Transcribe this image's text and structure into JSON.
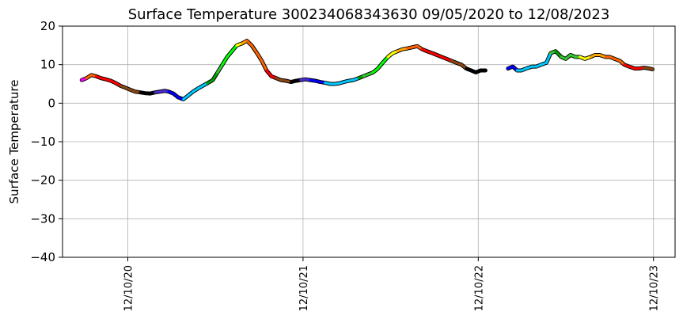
{
  "chart_data": {
    "type": "line",
    "title": "Surface Temperature 300234068343630  09/05/2020 to 12/08/2023",
    "ylabel": "Surface Temperature",
    "xlabel": "",
    "ylim": [
      -40,
      20
    ],
    "xlim": [
      "2020-07-27",
      "2024-01-24"
    ],
    "yticks": [
      -40,
      -30,
      -20,
      -10,
      0,
      10,
      20
    ],
    "xticks": [
      "2020-12-10",
      "2021-12-10",
      "2022-12-10",
      "2023-12-10"
    ],
    "xtick_labels": [
      "12/10/20",
      "12/10/21",
      "12/10/22",
      "12/10/23"
    ],
    "grid": true,
    "colors": [
      "#ff00ff",
      "#ff0000",
      "#8b4513",
      "#000000",
      "#4b2bd0",
      "#0000ff",
      "#00c8ff",
      "#00a000",
      "#33cc33",
      "#00ff00",
      "#ffff00",
      "#ffa500",
      "#ff6400"
    ],
    "series": [
      {
        "x": [
          "2020-09-05",
          "2020-09-15",
          "2020-09-25",
          "2020-10-05",
          "2020-10-15",
          "2020-10-25",
          "2020-11-05",
          "2020-11-15",
          "2020-11-25",
          "2020-12-05",
          "2020-12-15",
          "2020-12-25",
          "2021-01-05",
          "2021-01-15",
          "2021-01-25",
          "2021-02-05",
          "2021-02-15",
          "2021-02-25",
          "2021-03-05",
          "2021-03-15",
          "2021-03-25",
          "2021-04-05",
          "2021-04-15",
          "2021-04-25",
          "2021-05-05",
          "2021-05-15",
          "2021-05-25",
          "2021-06-05",
          "2021-06-15",
          "2021-06-25",
          "2021-07-05",
          "2021-07-15",
          "2021-07-25",
          "2021-08-05",
          "2021-08-15",
          "2021-08-25",
          "2021-09-05",
          "2021-09-15",
          "2021-09-25",
          "2021-10-05",
          "2021-10-15",
          "2021-10-25",
          "2021-11-05",
          "2021-11-15",
          "2021-11-25",
          "2021-12-05",
          "2021-12-15",
          "2021-12-25",
          "2022-01-05",
          "2022-01-15",
          "2022-01-25",
          "2022-02-05",
          "2022-02-15",
          "2022-02-25",
          "2022-03-05",
          "2022-03-15",
          "2022-03-25",
          "2022-04-05",
          "2022-04-15",
          "2022-04-25",
          "2022-05-05",
          "2022-05-15",
          "2022-05-25",
          "2022-06-05",
          "2022-06-15",
          "2022-06-25",
          "2022-07-05",
          "2022-07-15",
          "2022-07-25",
          "2022-08-05",
          "2022-08-15",
          "2022-08-25",
          "2022-09-05",
          "2022-09-15",
          "2022-09-25",
          "2022-10-05",
          "2022-10-15",
          "2022-10-25",
          "2022-11-05",
          "2022-11-15",
          "2022-11-25",
          "2022-12-05",
          "2022-12-15",
          "2022-12-25"
        ],
        "y": [
          6.0,
          6.5,
          7.3,
          7.0,
          6.5,
          6.2,
          5.8,
          5.2,
          4.5,
          4.0,
          3.5,
          3.0,
          2.8,
          2.6,
          2.5,
          2.8,
          3.0,
          3.2,
          3.0,
          2.5,
          1.5,
          1.0,
          2.0,
          3.0,
          3.8,
          4.5,
          5.2,
          6.0,
          8.0,
          10.0,
          12.0,
          13.5,
          15.0,
          15.5,
          16.2,
          15.0,
          13.0,
          11.0,
          8.5,
          7.0,
          6.5,
          6.0,
          5.8,
          5.5,
          5.8,
          6.0,
          6.2,
          6.0,
          5.8,
          5.5,
          5.3,
          5.0,
          5.0,
          5.2,
          5.5,
          5.8,
          6.0,
          6.5,
          7.0,
          7.5,
          8.0,
          9.0,
          10.5,
          12.0,
          13.0,
          13.5,
          14.0,
          14.2,
          14.5,
          14.8,
          14.0,
          13.5,
          13.0,
          12.5,
          12.0,
          11.5,
          11.0,
          10.5,
          10.0,
          9.0,
          8.5,
          8.0,
          8.5,
          8.5
        ],
        "colors": [
          "#ff00ff",
          "#ff6400",
          "#ff6400",
          "#ff0000",
          "#ff0000",
          "#ff0000",
          "#ff0000",
          "#ff0000",
          "#8b4513",
          "#8b4513",
          "#8b4513",
          "#8b4513",
          "#000000",
          "#000000",
          "#000000",
          "#4b2bd0",
          "#4b2bd0",
          "#4b2bd0",
          "#0000ff",
          "#0000ff",
          "#0000ff",
          "#00c8ff",
          "#00c8ff",
          "#00c8ff",
          "#00c8ff",
          "#00c8ff",
          "#00a000",
          "#00a000",
          "#33cc33",
          "#00ff00",
          "#00ff00",
          "#00ff00",
          "#ffff00",
          "#ffa500",
          "#ff6400",
          "#ff6400",
          "#ff6400",
          "#ff6400",
          "#ff0000",
          "#ff0000",
          "#8b4513",
          "#8b4513",
          "#8b4513",
          "#000000",
          "#000000",
          "#4b2bd0",
          "#4b2bd0",
          "#0000ff",
          "#0000ff",
          "#0000ff",
          "#00c8ff",
          "#00c8ff",
          "#00c8ff",
          "#00c8ff",
          "#00c8ff",
          "#00c8ff",
          "#00c8ff",
          "#00a000",
          "#33cc33",
          "#33cc33",
          "#00ff00",
          "#00ff00",
          "#00ff00",
          "#ffff00",
          "#ffff00",
          "#ffa500",
          "#ffa500",
          "#ff6400",
          "#ff6400",
          "#ff6400",
          "#ff0000",
          "#ff0000",
          "#ff0000",
          "#ff0000",
          "#ff0000",
          "#ff0000",
          "#8b4513",
          "#8b4513",
          "#8b4513",
          "#000000",
          "#000000",
          "#000000",
          "#000000",
          "#000000"
        ]
      },
      {
        "x": [
          "2023-02-10",
          "2023-02-20",
          "2023-03-01",
          "2023-03-10",
          "2023-03-20",
          "2023-04-01",
          "2023-04-10",
          "2023-04-20",
          "2023-05-01",
          "2023-05-10",
          "2023-05-20",
          "2023-06-01",
          "2023-06-10",
          "2023-06-20",
          "2023-07-01",
          "2023-07-10",
          "2023-07-20",
          "2023-08-01",
          "2023-08-10",
          "2023-08-20",
          "2023-09-01",
          "2023-09-10",
          "2023-09-20",
          "2023-10-01",
          "2023-10-10",
          "2023-10-20",
          "2023-11-01",
          "2023-11-10",
          "2023-11-20",
          "2023-12-01",
          "2023-12-08"
        ],
        "y": [
          9.0,
          9.5,
          8.5,
          8.5,
          9.0,
          9.5,
          9.5,
          10.0,
          10.5,
          13.0,
          13.5,
          12.0,
          11.5,
          12.5,
          12.0,
          12.0,
          11.5,
          12.0,
          12.5,
          12.5,
          12.0,
          12.0,
          11.5,
          11.0,
          10.0,
          9.5,
          9.0,
          9.0,
          9.2,
          9.0,
          8.8
        ],
        "colors": [
          "#0000ff",
          "#0000ff",
          "#00c8ff",
          "#00c8ff",
          "#00c8ff",
          "#00c8ff",
          "#00c8ff",
          "#00c8ff",
          "#00c8ff",
          "#33cc33",
          "#00a000",
          "#33cc33",
          "#33cc33",
          "#33cc33",
          "#33cc33",
          "#ffff00",
          "#ffff00",
          "#ffa500",
          "#ffa500",
          "#ffa500",
          "#ff6400",
          "#ff6400",
          "#ff6400",
          "#ff6400",
          "#ff0000",
          "#ff0000",
          "#ff0000",
          "#ff0000",
          "#8b4513",
          "#8b4513",
          "#8b4513"
        ]
      }
    ]
  }
}
